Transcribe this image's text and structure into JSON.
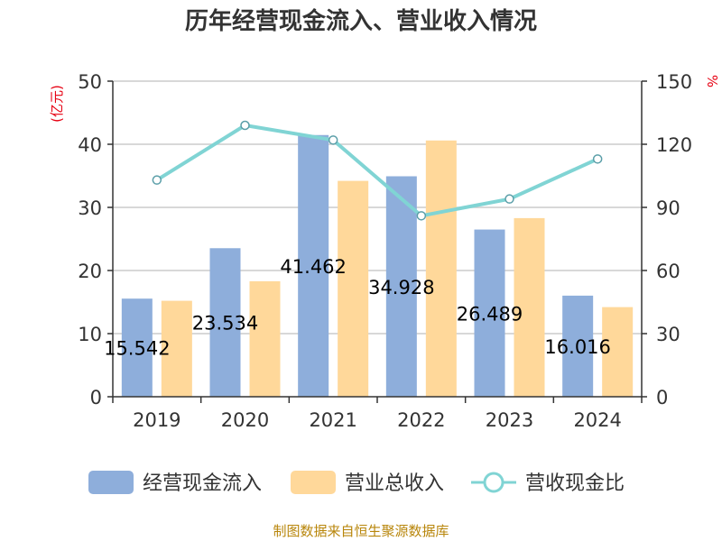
{
  "chart_data": {
    "type": "bar",
    "title": "历年经营现金流入、营业收入情况",
    "categories": [
      "2019",
      "2020",
      "2021",
      "2022",
      "2023",
      "2024"
    ],
    "series": [
      {
        "name": "经营现金流入",
        "kind": "bar",
        "axis": "left",
        "color": "#8eaedb",
        "values": [
          15.542,
          23.534,
          41.462,
          34.928,
          26.489,
          16.016
        ],
        "labels": [
          "15.542",
          "23.534",
          "41.462",
          "34.928",
          "26.489",
          "16.016"
        ]
      },
      {
        "name": "营业总收入",
        "kind": "bar",
        "axis": "left",
        "color": "#ffd89a",
        "values": [
          15.2,
          18.3,
          34.2,
          40.6,
          28.3,
          14.2
        ]
      },
      {
        "name": "营收现金比",
        "kind": "line",
        "axis": "right",
        "color": "#80d4d4",
        "values": [
          103,
          129,
          122,
          86,
          94,
          113
        ]
      }
    ],
    "y_left": {
      "unit_label": "(亿元)",
      "min": 0,
      "max": 50,
      "ticks": [
        "0",
        "10",
        "20",
        "30",
        "40",
        "50"
      ]
    },
    "y_right": {
      "unit_label": "%",
      "min": 0,
      "max": 150,
      "ticks": [
        "0",
        "30",
        "60",
        "90",
        "120",
        "150"
      ]
    },
    "grid": true,
    "legend": "bottom"
  },
  "source_text": "制图数据来自恒生聚源数据库"
}
